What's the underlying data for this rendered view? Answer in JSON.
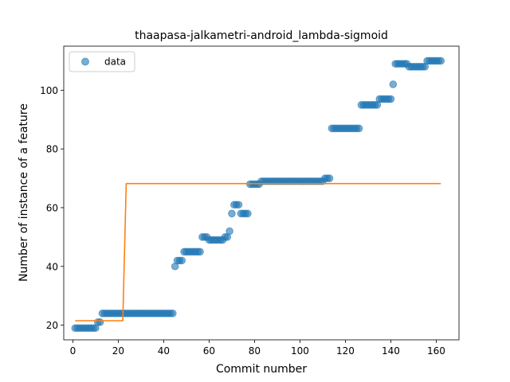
{
  "chart_data": {
    "type": "scatter",
    "title": "thaapasa-jalkametri-android_lambda-sigmoid",
    "xlabel": "Commit number",
    "ylabel": "Number of instance of a feature",
    "xlim": [
      -4,
      170
    ],
    "ylim": [
      15,
      115
    ],
    "xticks": [
      0,
      20,
      40,
      60,
      80,
      100,
      120,
      140,
      160
    ],
    "yticks": [
      20,
      40,
      60,
      80,
      100
    ],
    "legend": {
      "position": "top-left",
      "entries": [
        "data"
      ]
    },
    "grid": false,
    "colors": {
      "data": "#1f77b4",
      "fit": "#ff7f0e"
    },
    "series": [
      {
        "name": "data",
        "kind": "points",
        "points": [
          [
            1,
            19
          ],
          [
            2,
            19
          ],
          [
            3,
            19
          ],
          [
            4,
            19
          ],
          [
            5,
            19
          ],
          [
            6,
            19
          ],
          [
            7,
            19
          ],
          [
            8,
            19
          ],
          [
            9,
            19
          ],
          [
            10,
            19
          ],
          [
            11,
            21
          ],
          [
            12,
            21
          ],
          [
            13,
            24
          ],
          [
            14,
            24
          ],
          [
            15,
            24
          ],
          [
            16,
            24
          ],
          [
            17,
            24
          ],
          [
            18,
            24
          ],
          [
            19,
            24
          ],
          [
            20,
            24
          ],
          [
            21,
            24
          ],
          [
            22,
            24
          ],
          [
            23,
            24
          ],
          [
            24,
            24
          ],
          [
            25,
            24
          ],
          [
            26,
            24
          ],
          [
            27,
            24
          ],
          [
            28,
            24
          ],
          [
            29,
            24
          ],
          [
            30,
            24
          ],
          [
            31,
            24
          ],
          [
            32,
            24
          ],
          [
            33,
            24
          ],
          [
            34,
            24
          ],
          [
            35,
            24
          ],
          [
            36,
            24
          ],
          [
            37,
            24
          ],
          [
            38,
            24
          ],
          [
            39,
            24
          ],
          [
            40,
            24
          ],
          [
            41,
            24
          ],
          [
            42,
            24
          ],
          [
            43,
            24
          ],
          [
            44,
            24
          ],
          [
            45,
            40
          ],
          [
            46,
            42
          ],
          [
            47,
            42
          ],
          [
            48,
            42
          ],
          [
            49,
            45
          ],
          [
            50,
            45
          ],
          [
            51,
            45
          ],
          [
            52,
            45
          ],
          [
            53,
            45
          ],
          [
            54,
            45
          ],
          [
            55,
            45
          ],
          [
            56,
            45
          ],
          [
            57,
            50
          ],
          [
            58,
            50
          ],
          [
            59,
            50
          ],
          [
            60,
            49
          ],
          [
            61,
            49
          ],
          [
            62,
            49
          ],
          [
            63,
            49
          ],
          [
            64,
            49
          ],
          [
            65,
            49
          ],
          [
            66,
            49
          ],
          [
            67,
            50
          ],
          [
            68,
            50
          ],
          [
            69,
            52
          ],
          [
            70,
            58
          ],
          [
            71,
            61
          ],
          [
            72,
            61
          ],
          [
            73,
            61
          ],
          [
            74,
            58
          ],
          [
            75,
            58
          ],
          [
            76,
            58
          ],
          [
            77,
            58
          ],
          [
            78,
            68
          ],
          [
            79,
            68
          ],
          [
            80,
            68
          ],
          [
            81,
            68
          ],
          [
            82,
            68
          ],
          [
            83,
            69
          ],
          [
            84,
            69
          ],
          [
            85,
            69
          ],
          [
            86,
            69
          ],
          [
            87,
            69
          ],
          [
            88,
            69
          ],
          [
            89,
            69
          ],
          [
            90,
            69
          ],
          [
            91,
            69
          ],
          [
            92,
            69
          ],
          [
            93,
            69
          ],
          [
            94,
            69
          ],
          [
            95,
            69
          ],
          [
            96,
            69
          ],
          [
            97,
            69
          ],
          [
            98,
            69
          ],
          [
            99,
            69
          ],
          [
            100,
            69
          ],
          [
            101,
            69
          ],
          [
            102,
            69
          ],
          [
            103,
            69
          ],
          [
            104,
            69
          ],
          [
            105,
            69
          ],
          [
            106,
            69
          ],
          [
            107,
            69
          ],
          [
            108,
            69
          ],
          [
            109,
            69
          ],
          [
            110,
            69
          ],
          [
            111,
            70
          ],
          [
            112,
            70
          ],
          [
            113,
            70
          ],
          [
            114,
            87
          ],
          [
            115,
            87
          ],
          [
            116,
            87
          ],
          [
            117,
            87
          ],
          [
            118,
            87
          ],
          [
            119,
            87
          ],
          [
            120,
            87
          ],
          [
            121,
            87
          ],
          [
            122,
            87
          ],
          [
            123,
            87
          ],
          [
            124,
            87
          ],
          [
            125,
            87
          ],
          [
            126,
            87
          ],
          [
            127,
            95
          ],
          [
            128,
            95
          ],
          [
            129,
            95
          ],
          [
            130,
            95
          ],
          [
            131,
            95
          ],
          [
            132,
            95
          ],
          [
            133,
            95
          ],
          [
            134,
            95
          ],
          [
            135,
            97
          ],
          [
            136,
            97
          ],
          [
            137,
            97
          ],
          [
            138,
            97
          ],
          [
            139,
            97
          ],
          [
            140,
            97
          ],
          [
            141,
            102
          ],
          [
            142,
            109
          ],
          [
            143,
            109
          ],
          [
            144,
            109
          ],
          [
            145,
            109
          ],
          [
            146,
            109
          ],
          [
            147,
            109
          ],
          [
            148,
            108
          ],
          [
            149,
            108
          ],
          [
            150,
            108
          ],
          [
            151,
            108
          ],
          [
            152,
            108
          ],
          [
            153,
            108
          ],
          [
            154,
            108
          ],
          [
            155,
            108
          ],
          [
            156,
            110
          ],
          [
            157,
            110
          ],
          [
            158,
            110
          ],
          [
            159,
            110
          ],
          [
            160,
            110
          ],
          [
            161,
            110
          ],
          [
            162,
            110
          ]
        ]
      },
      {
        "kind": "line",
        "points": [
          [
            1,
            21.5
          ],
          [
            22,
            21.5
          ],
          [
            23.5,
            68.2
          ],
          [
            162,
            68.2
          ]
        ]
      }
    ]
  }
}
